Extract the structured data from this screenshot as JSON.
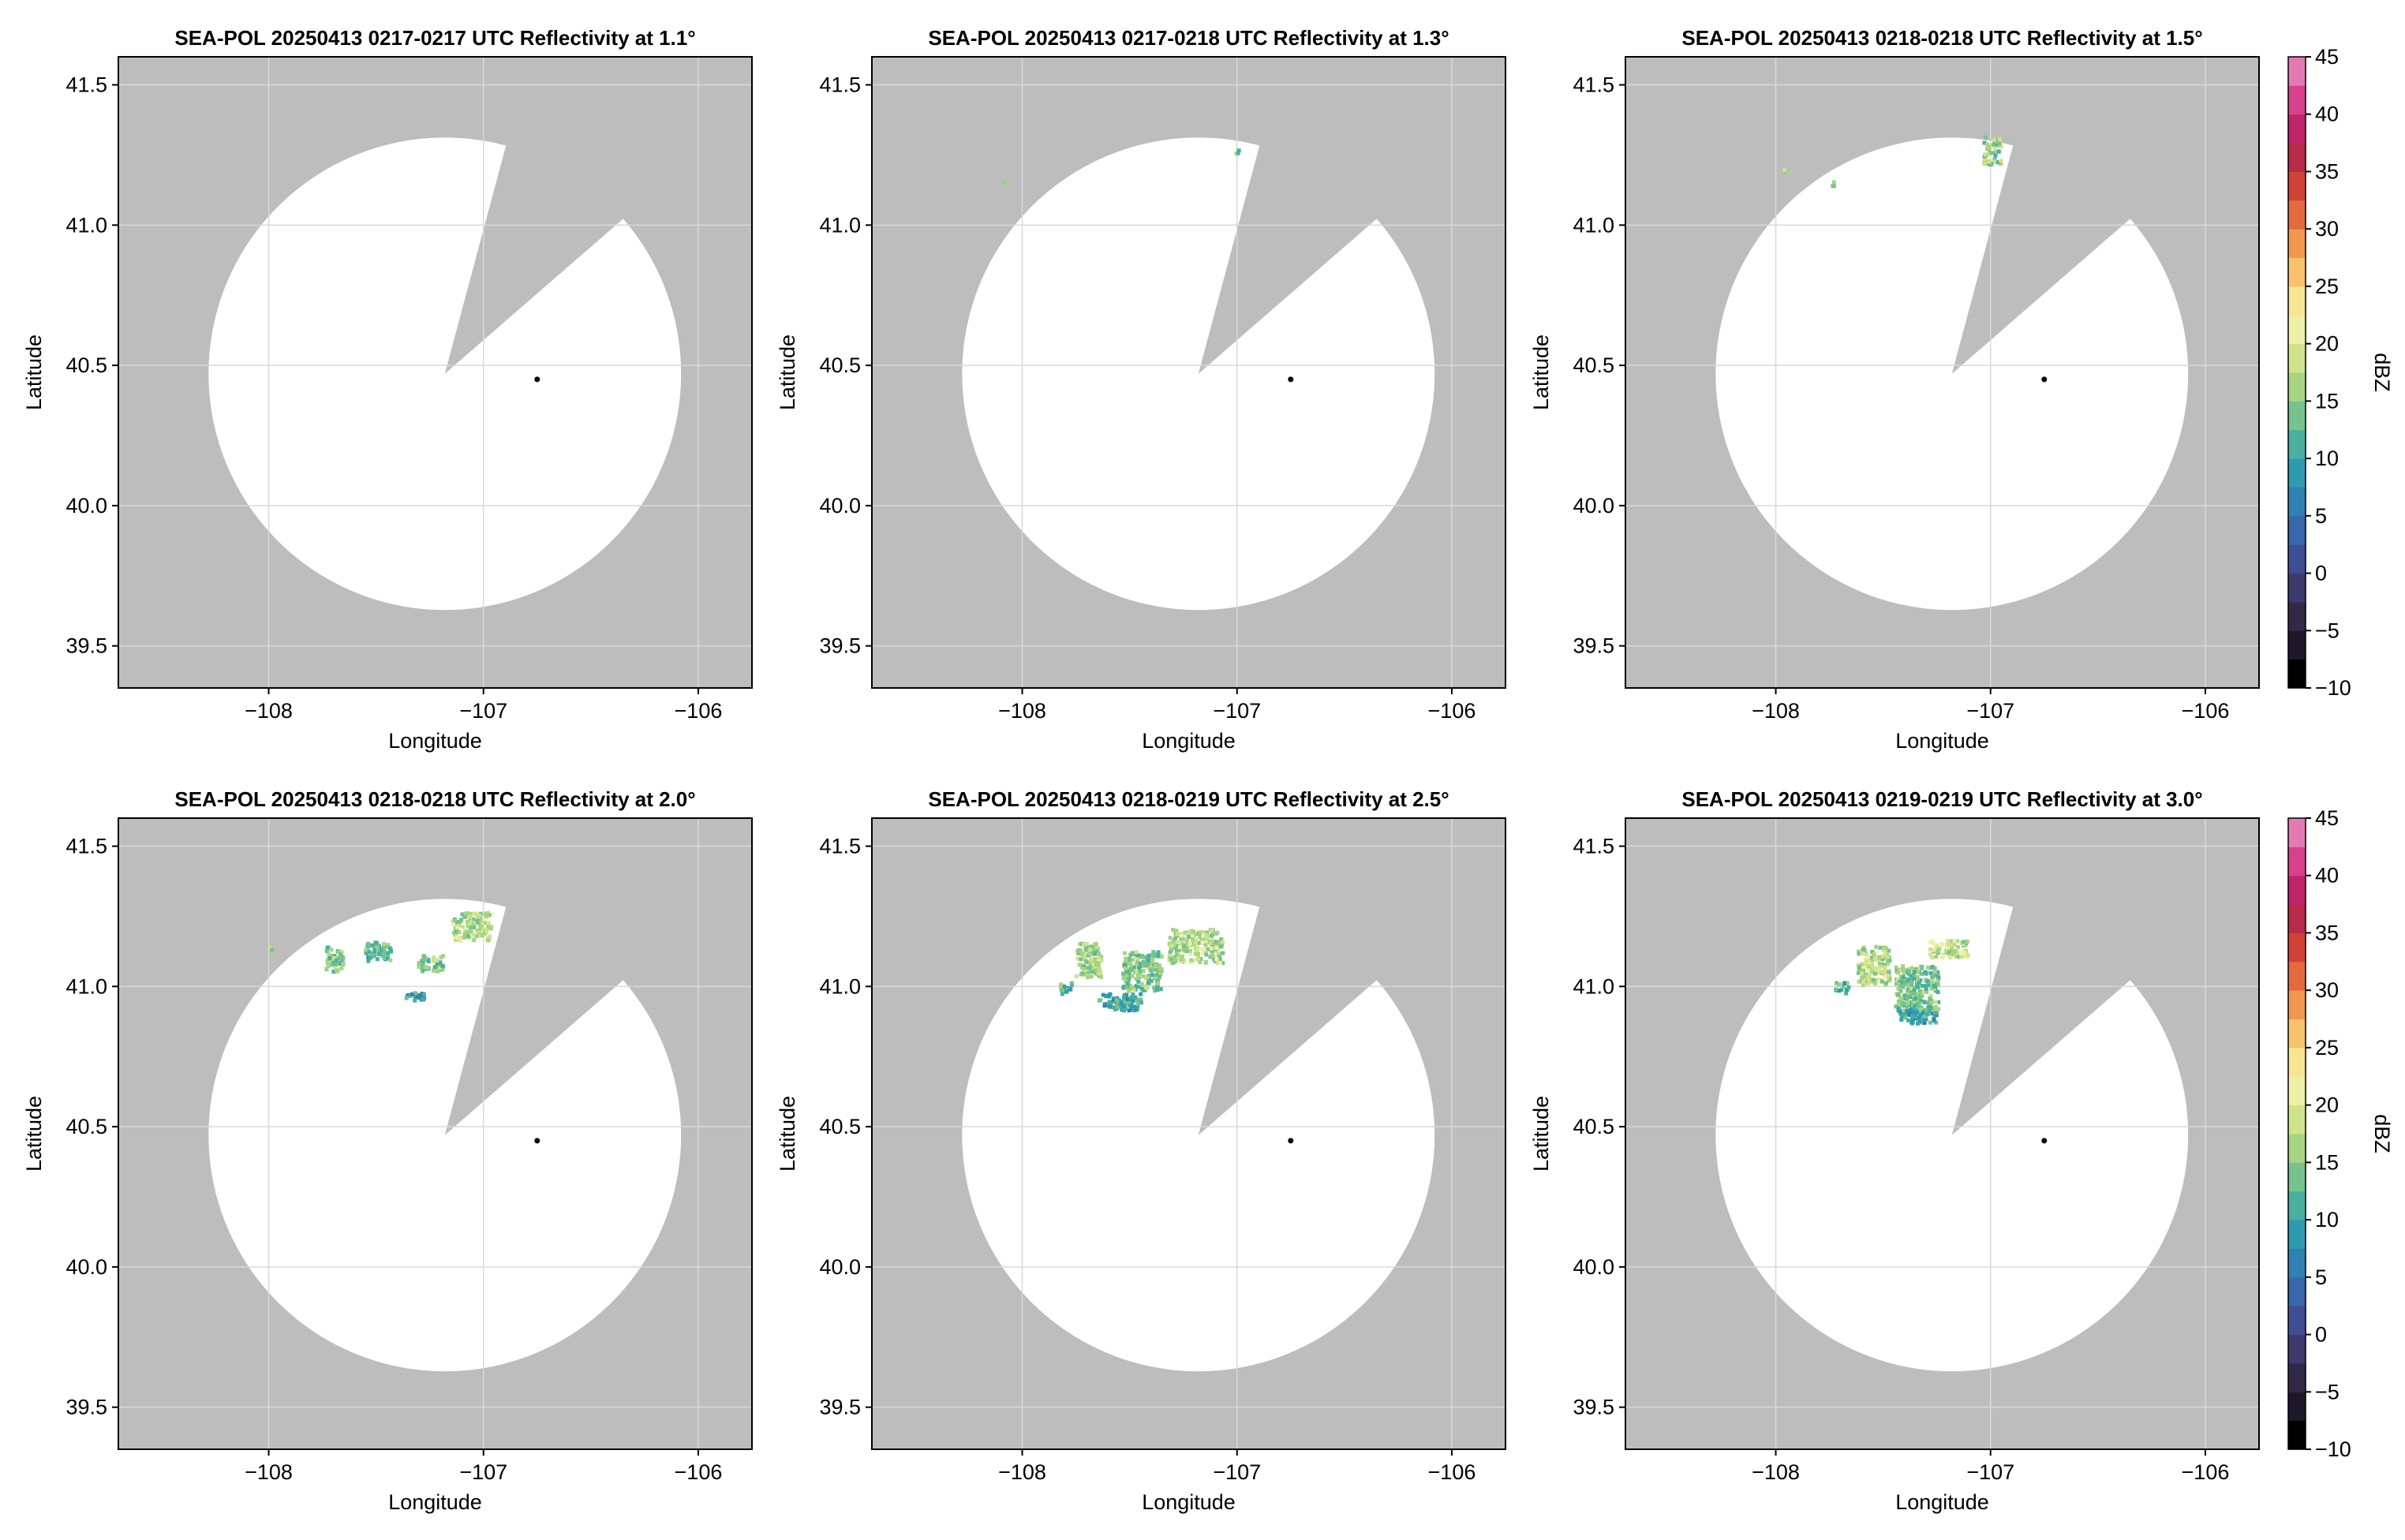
{
  "figure": {
    "background": "#ffffff",
    "mask_color": "#bdbdbd",
    "grid_color": "#d9d9d9",
    "marker_color": "#000000"
  },
  "chart_data": [
    {
      "type": "heatmap",
      "title": "SEA-POL 20250413 0217-0217 UTC Reflectivity at 1.1°",
      "xlabel": "Longitude",
      "ylabel": "Latitude",
      "xlim": [
        -108.7,
        -105.75
      ],
      "ylim": [
        39.35,
        41.6
      ],
      "x_ticks": [
        -108,
        -107,
        -106
      ],
      "x_tick_labels": [
        "−108",
        "−107",
        "−106"
      ],
      "y_ticks": [
        39.5,
        40.0,
        40.5,
        41.0,
        41.5
      ],
      "y_tick_labels": [
        "39.5",
        "40.0",
        "40.5",
        "41.0",
        "41.5"
      ],
      "grid": true,
      "radar_site": [
        -106.75,
        40.45
      ],
      "coverage_center": [
        -107.18,
        40.47
      ],
      "coverage_radius_deg": 1.1,
      "blocked_sector_deg": [
        15,
        49
      ],
      "echoes": []
    },
    {
      "type": "heatmap",
      "title": "SEA-POL 20250413 0217-0218 UTC Reflectivity at 1.3°",
      "xlabel": "Longitude",
      "ylabel": "Latitude",
      "xlim": [
        -108.7,
        -105.75
      ],
      "ylim": [
        39.35,
        41.6
      ],
      "x_ticks": [
        -108,
        -107,
        -106
      ],
      "x_tick_labels": [
        "−108",
        "−107",
        "−106"
      ],
      "y_ticks": [
        39.5,
        40.0,
        40.5,
        41.0,
        41.5
      ],
      "y_tick_labels": [
        "39.5",
        "40.0",
        "40.5",
        "41.0",
        "41.5"
      ],
      "grid": true,
      "radar_site": [
        -106.75,
        40.45
      ],
      "coverage_center": [
        -107.18,
        40.47
      ],
      "coverage_radius_deg": 1.1,
      "blocked_sector_deg": [
        15,
        49
      ],
      "echoes": [
        {
          "lon": -108.08,
          "lat": 41.16,
          "dlon": 0.02,
          "dlat": 0.02,
          "dbz": 16
        },
        {
          "lon": -107.01,
          "lat": 41.27,
          "dlon": 0.02,
          "dlat": 0.02,
          "dbz": 15
        }
      ]
    },
    {
      "type": "heatmap",
      "title": "SEA-POL 20250413 0218-0218 UTC Reflectivity at 1.5°",
      "xlabel": "Longitude",
      "ylabel": "Latitude",
      "xlim": [
        -108.7,
        -105.75
      ],
      "ylim": [
        39.35,
        41.6
      ],
      "x_ticks": [
        -108,
        -107,
        -106
      ],
      "x_tick_labels": [
        "−108",
        "−107",
        "−106"
      ],
      "y_ticks": [
        39.5,
        40.0,
        40.5,
        41.0,
        41.5
      ],
      "y_tick_labels": [
        "39.5",
        "40.0",
        "40.5",
        "41.0",
        "41.5"
      ],
      "grid": true,
      "radar_site": [
        -106.75,
        40.45
      ],
      "coverage_center": [
        -107.18,
        40.47
      ],
      "coverage_radius_deg": 1.1,
      "blocked_sector_deg": [
        15,
        49
      ],
      "echoes": [
        {
          "lon": -107.96,
          "lat": 41.2,
          "dlon": 0.02,
          "dlat": 0.02,
          "dbz": 15
        },
        {
          "lon": -107.74,
          "lat": 41.15,
          "dlon": 0.02,
          "dlat": 0.02,
          "dbz": 14
        },
        {
          "lon": -107.0,
          "lat": 41.27,
          "dlon": 0.08,
          "dlat": 0.1,
          "dbz": 15
        }
      ]
    },
    {
      "type": "heatmap",
      "title": "SEA-POL 20250413 0218-0218 UTC Reflectivity at 2.0°",
      "xlabel": "Longitude",
      "ylabel": "Latitude",
      "xlim": [
        -108.7,
        -105.75
      ],
      "ylim": [
        39.35,
        41.6
      ],
      "x_ticks": [
        -108,
        -107,
        -106
      ],
      "x_tick_labels": [
        "−108",
        "−107",
        "−106"
      ],
      "y_ticks": [
        39.5,
        40.0,
        40.5,
        41.0,
        41.5
      ],
      "y_tick_labels": [
        "39.5",
        "40.0",
        "40.5",
        "41.0",
        "41.5"
      ],
      "grid": true,
      "radar_site": [
        -106.75,
        40.45
      ],
      "coverage_center": [
        -107.18,
        40.47
      ],
      "coverage_radius_deg": 1.1,
      "blocked_sector_deg": [
        15,
        49
      ],
      "echoes": [
        {
          "lon": -108.0,
          "lat": 41.14,
          "dlon": 0.02,
          "dlat": 0.02,
          "dbz": 16
        },
        {
          "lon": -107.7,
          "lat": 41.1,
          "dlon": 0.08,
          "dlat": 0.1,
          "dbz": 15
        },
        {
          "lon": -107.5,
          "lat": 41.13,
          "dlon": 0.12,
          "dlat": 0.07,
          "dbz": 13
        },
        {
          "lon": -107.25,
          "lat": 41.09,
          "dlon": 0.12,
          "dlat": 0.06,
          "dbz": 14
        },
        {
          "lon": -107.06,
          "lat": 41.22,
          "dlon": 0.18,
          "dlat": 0.1,
          "dbz": 17
        },
        {
          "lon": -107.32,
          "lat": 40.97,
          "dlon": 0.1,
          "dlat": 0.03,
          "dbz": 10
        }
      ]
    },
    {
      "type": "heatmap",
      "title": "SEA-POL 20250413 0218-0219 UTC Reflectivity at 2.5°",
      "xlabel": "Longitude",
      "ylabel": "Latitude",
      "xlim": [
        -108.7,
        -105.75
      ],
      "ylim": [
        39.35,
        41.6
      ],
      "x_ticks": [
        -108,
        -107,
        -106
      ],
      "x_tick_labels": [
        "−108",
        "−107",
        "−106"
      ],
      "y_ticks": [
        39.5,
        40.0,
        40.5,
        41.0,
        41.5
      ],
      "y_tick_labels": [
        "39.5",
        "40.0",
        "40.5",
        "41.0",
        "41.5"
      ],
      "grid": true,
      "radar_site": [
        -106.75,
        40.45
      ],
      "coverage_center": [
        -107.18,
        40.47
      ],
      "coverage_radius_deg": 1.1,
      "blocked_sector_deg": [
        15,
        49
      ],
      "echoes": [
        {
          "lon": -107.7,
          "lat": 41.1,
          "dlon": 0.12,
          "dlat": 0.12,
          "dbz": 16
        },
        {
          "lon": -107.45,
          "lat": 41.06,
          "dlon": 0.18,
          "dlat": 0.14,
          "dbz": 14
        },
        {
          "lon": -107.2,
          "lat": 41.15,
          "dlon": 0.25,
          "dlat": 0.12,
          "dbz": 17
        },
        {
          "lon": -107.55,
          "lat": 40.95,
          "dlon": 0.2,
          "dlat": 0.06,
          "dbz": 11
        },
        {
          "lon": -107.8,
          "lat": 41.0,
          "dlon": 0.06,
          "dlat": 0.04,
          "dbz": 13
        }
      ]
    },
    {
      "type": "heatmap",
      "title": "SEA-POL 20250413 0219-0219 UTC Reflectivity at 3.0°",
      "xlabel": "Longitude",
      "ylabel": "Latitude",
      "xlim": [
        -108.7,
        -105.75
      ],
      "ylim": [
        39.35,
        41.6
      ],
      "x_ticks": [
        -108,
        -107,
        -106
      ],
      "x_tick_labels": [
        "−108",
        "−107",
        "−106"
      ],
      "y_ticks": [
        39.5,
        40.0,
        40.5,
        41.0,
        41.5
      ],
      "y_tick_labels": [
        "39.5",
        "40.0",
        "40.5",
        "41.0",
        "41.5"
      ],
      "grid": true,
      "radar_site": [
        -106.75,
        40.45
      ],
      "coverage_center": [
        -107.18,
        40.47
      ],
      "coverage_radius_deg": 1.1,
      "blocked_sector_deg": [
        15,
        49
      ],
      "echoes": [
        {
          "lon": -107.55,
          "lat": 41.08,
          "dlon": 0.15,
          "dlat": 0.14,
          "dbz": 17
        },
        {
          "lon": -107.35,
          "lat": 41.0,
          "dlon": 0.2,
          "dlat": 0.16,
          "dbz": 14
        },
        {
          "lon": -107.2,
          "lat": 41.14,
          "dlon": 0.18,
          "dlat": 0.06,
          "dbz": 18
        },
        {
          "lon": -107.35,
          "lat": 40.9,
          "dlon": 0.18,
          "dlat": 0.05,
          "dbz": 10
        },
        {
          "lon": -107.7,
          "lat": 41.0,
          "dlon": 0.06,
          "dlat": 0.04,
          "dbz": 13
        }
      ]
    }
  ],
  "colorbar": {
    "label": "dBZ",
    "min": -10,
    "max": 45,
    "step": 2.5,
    "ticks": [
      -10,
      -5,
      0,
      5,
      10,
      15,
      20,
      25,
      30,
      35,
      40,
      45
    ],
    "tick_labels": [
      "−10",
      "−5",
      "0",
      "5",
      "10",
      "15",
      "20",
      "25",
      "30",
      "35",
      "40",
      "45"
    ],
    "colors": [
      "#000000",
      "#1c1729",
      "#302a48",
      "#3d3a6e",
      "#3f4d93",
      "#3a66aa",
      "#2f81b2",
      "#2e9ab0",
      "#49af9f",
      "#77c28f",
      "#a6d483",
      "#cfe38c",
      "#eef0a7",
      "#f8e592",
      "#f8c36c",
      "#f2984e",
      "#e46a3e",
      "#d14236",
      "#b82a48",
      "#c0246a",
      "#d8408e",
      "#e47ab4",
      "#d9a3d3",
      "#a57fbd",
      "#7e55a1",
      "#5b2d80",
      "#3d1057"
    ]
  }
}
